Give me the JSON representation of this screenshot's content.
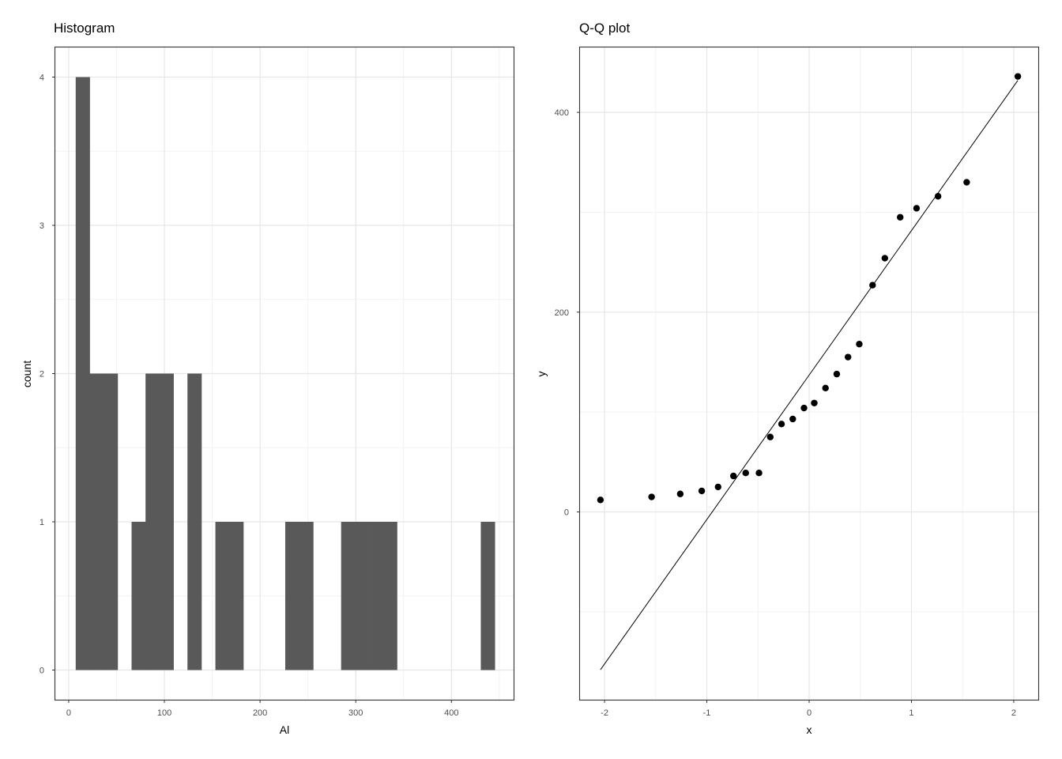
{
  "colors": {
    "bar_fill": "#595959",
    "point_fill": "#000000",
    "line": "#000000",
    "grid_major": "#e6e6e6",
    "grid_minor": "#f2f2f2",
    "panel_border": "#333333",
    "tick_label": "#4d4d4d"
  },
  "chart_data": [
    {
      "type": "bar",
      "subtype": "histogram",
      "title": "Histogram",
      "xlabel": "Al",
      "ylabel": "count",
      "xlim": [
        -14,
        465
      ],
      "ylim": [
        -0.2,
        4.2
      ],
      "x_ticks": [
        0,
        100,
        200,
        300,
        400
      ],
      "x_tick_labels": [
        "0",
        "100",
        "200",
        "300",
        "400"
      ],
      "y_ticks": [
        0,
        1,
        2,
        3,
        4
      ],
      "y_tick_labels": [
        "0",
        "1",
        "2",
        "3",
        "4"
      ],
      "grid": true,
      "bin_width": 14.6,
      "bins": [
        {
          "x_start": 7.3,
          "x_end": 21.9,
          "count": 4
        },
        {
          "x_start": 21.9,
          "x_end": 36.5,
          "count": 2
        },
        {
          "x_start": 36.5,
          "x_end": 51.1,
          "count": 2
        },
        {
          "x_start": 65.7,
          "x_end": 80.3,
          "count": 1
        },
        {
          "x_start": 80.3,
          "x_end": 94.9,
          "count": 2
        },
        {
          "x_start": 94.9,
          "x_end": 109.5,
          "count": 2
        },
        {
          "x_start": 124.1,
          "x_end": 138.7,
          "count": 2
        },
        {
          "x_start": 153.3,
          "x_end": 167.9,
          "count": 1
        },
        {
          "x_start": 167.9,
          "x_end": 182.5,
          "count": 1
        },
        {
          "x_start": 226.3,
          "x_end": 240.9,
          "count": 1
        },
        {
          "x_start": 240.9,
          "x_end": 255.5,
          "count": 1
        },
        {
          "x_start": 284.7,
          "x_end": 299.3,
          "count": 1
        },
        {
          "x_start": 299.3,
          "x_end": 313.9,
          "count": 1
        },
        {
          "x_start": 313.9,
          "x_end": 328.5,
          "count": 1
        },
        {
          "x_start": 328.5,
          "x_end": 343.1,
          "count": 1
        },
        {
          "x_start": 430.7,
          "x_end": 445.3,
          "count": 1
        }
      ]
    },
    {
      "type": "scatter",
      "subtype": "qq",
      "title": "Q-Q plot",
      "xlabel": "x",
      "ylabel": "y",
      "xlim": [
        -2.24,
        2.24
      ],
      "ylim": [
        -188,
        465
      ],
      "x_ticks": [
        -2,
        -1,
        0,
        1,
        2
      ],
      "x_tick_labels": [
        "-2",
        "-1",
        "0",
        "1",
        "2"
      ],
      "y_ticks": [
        0,
        200,
        400
      ],
      "y_tick_labels": [
        "0",
        "200",
        "400"
      ],
      "grid": true,
      "points": [
        {
          "x": -2.04,
          "y": 12
        },
        {
          "x": -1.54,
          "y": 15
        },
        {
          "x": -1.26,
          "y": 18
        },
        {
          "x": -1.05,
          "y": 21
        },
        {
          "x": -0.89,
          "y": 25
        },
        {
          "x": -0.74,
          "y": 36
        },
        {
          "x": -0.62,
          "y": 39
        },
        {
          "x": -0.49,
          "y": 39
        },
        {
          "x": -0.38,
          "y": 75
        },
        {
          "x": -0.27,
          "y": 88
        },
        {
          "x": -0.16,
          "y": 93
        },
        {
          "x": -0.05,
          "y": 104
        },
        {
          "x": 0.05,
          "y": 109
        },
        {
          "x": 0.16,
          "y": 124
        },
        {
          "x": 0.27,
          "y": 138
        },
        {
          "x": 0.38,
          "y": 155
        },
        {
          "x": 0.49,
          "y": 168
        },
        {
          "x": 0.62,
          "y": 227
        },
        {
          "x": 0.74,
          "y": 254
        },
        {
          "x": 0.89,
          "y": 295
        },
        {
          "x": 1.05,
          "y": 304
        },
        {
          "x": 1.26,
          "y": 316
        },
        {
          "x": 1.54,
          "y": 330
        },
        {
          "x": 2.04,
          "y": 436
        }
      ],
      "reference_line": {
        "x": [
          -2.04,
          2.04
        ],
        "y": [
          -158,
          432
        ]
      }
    }
  ]
}
